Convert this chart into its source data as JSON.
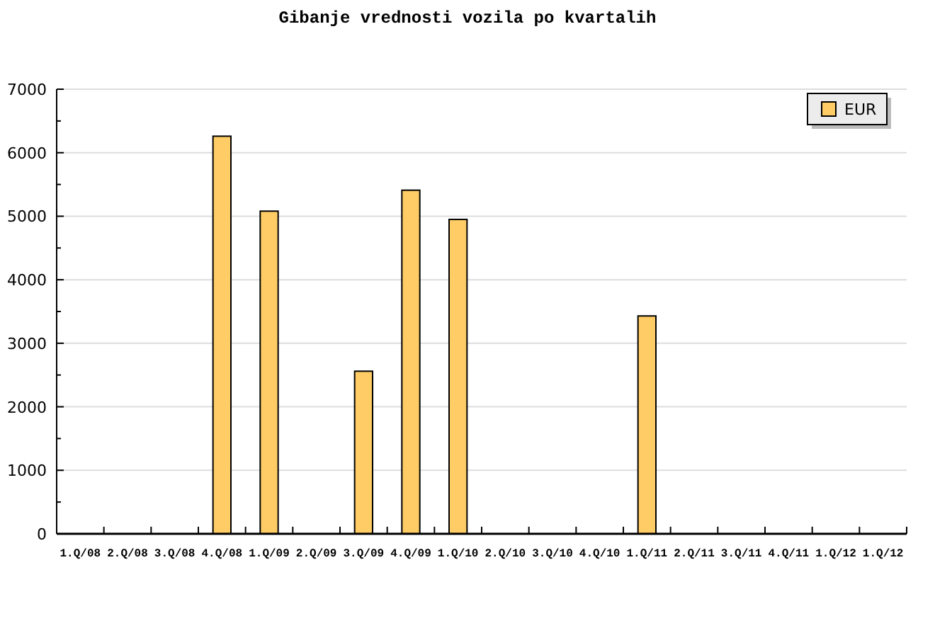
{
  "chart_data": {
    "type": "bar",
    "title": "Gibanje vrednosti vozila po kvartalih",
    "categories": [
      "1.Q/08",
      "2.Q/08",
      "3.Q/08",
      "4.Q/08",
      "1.Q/09",
      "2.Q/09",
      "3.Q/09",
      "4.Q/09",
      "1.Q/10",
      "2.Q/10",
      "3.Q/10",
      "4.Q/10",
      "1.Q/11",
      "2.Q/11",
      "3.Q/11",
      "4.Q/11",
      "1.Q/12",
      "1.Q/12"
    ],
    "series": [
      {
        "name": "EUR",
        "color": "#ffcc66",
        "values": [
          null,
          null,
          null,
          6260,
          5080,
          null,
          2560,
          5410,
          4950,
          null,
          null,
          null,
          3430,
          null,
          null,
          null,
          null,
          null
        ]
      }
    ],
    "ylim": [
      0,
      7000
    ],
    "yticks": [
      0,
      {
        "value": 500,
        "label": null
      },
      1000,
      {
        "value": 1500,
        "label": null
      },
      2000,
      {
        "value": 2500,
        "label": null
      },
      3000,
      {
        "value": 3500,
        "label": null
      },
      4000,
      {
        "value": 4500,
        "label": null
      },
      5000,
      {
        "value": 5500,
        "label": null
      },
      6000,
      {
        "value": 6500,
        "label": null
      },
      7000
    ],
    "grid": "y",
    "legend": "top right"
  }
}
